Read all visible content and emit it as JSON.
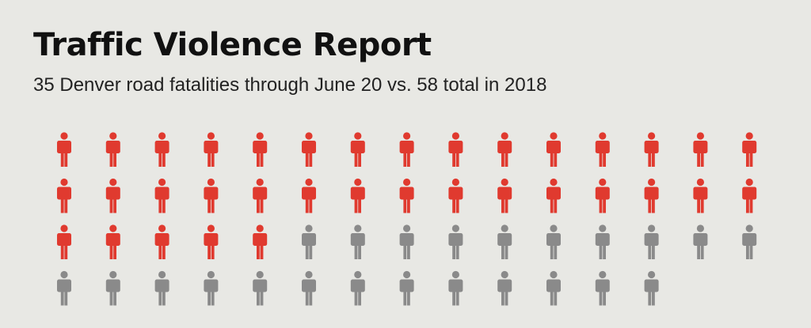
{
  "chart_data": {
    "type": "isotype",
    "title": "Traffic Violence Report",
    "subtitle": "35 Denver road fatalities through June 20 vs. 58 total in 2018",
    "series": [
      {
        "name": "Denver road fatalities through June 20",
        "value": 35,
        "color": "#e03a2f"
      },
      {
        "name": "Total in 2018",
        "value": 58,
        "color": "#8a8a8a"
      }
    ],
    "icons_per_row": 15
  }
}
